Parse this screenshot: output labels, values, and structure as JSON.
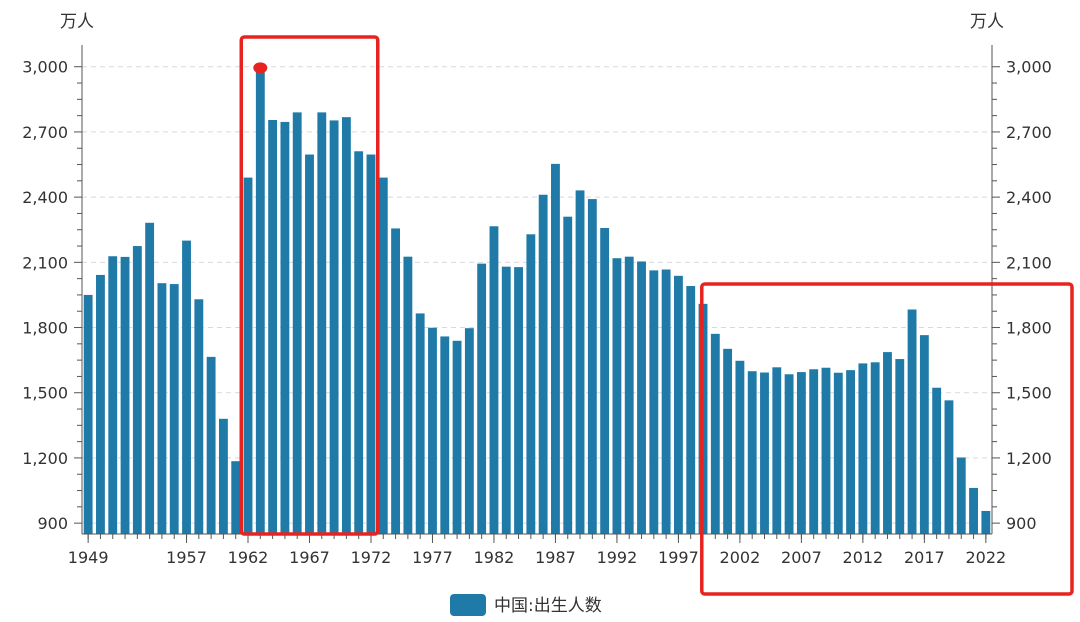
{
  "chart_data": {
    "type": "bar",
    "ylabel_left": "万人",
    "ylabel_right": "万人",
    "ylim": [
      850,
      3100
    ],
    "yticks": [
      900,
      1200,
      1500,
      1800,
      2100,
      2400,
      2700,
      3000
    ],
    "ytick_labels": [
      "900",
      "1,200",
      "1,500",
      "1,800",
      "2,100",
      "2,400",
      "2,700",
      "3,000"
    ],
    "xtick_labels": [
      "1949",
      "1957",
      "1962",
      "1967",
      "1972",
      "1977",
      "1982",
      "1987",
      "1992",
      "1997",
      "2002",
      "2007",
      "2012",
      "2017",
      "2022"
    ],
    "xtick_years": [
      1949,
      1957,
      1962,
      1967,
      1972,
      1977,
      1982,
      1987,
      1992,
      1997,
      2002,
      2007,
      2012,
      2017,
      2022
    ],
    "series": [
      {
        "name": "中国:出生人数",
        "color": "#1f7aa8",
        "categories": [
          1949,
          1950,
          1951,
          1952,
          1953,
          1954,
          1955,
          1956,
          1957,
          1958,
          1959,
          1960,
          1961,
          1962,
          1963,
          1964,
          1965,
          1966,
          1967,
          1968,
          1969,
          1970,
          1971,
          1972,
          1973,
          1974,
          1975,
          1976,
          1977,
          1978,
          1979,
          1980,
          1981,
          1982,
          1983,
          1984,
          1985,
          1986,
          1987,
          1988,
          1989,
          1990,
          1991,
          1992,
          1993,
          1994,
          1995,
          1996,
          1997,
          1998,
          1999,
          2000,
          2001,
          2002,
          2003,
          2004,
          2005,
          2006,
          2007,
          2008,
          2009,
          2010,
          2011,
          2012,
          2013,
          2014,
          2015,
          2016,
          2017,
          2018,
          2019,
          2020,
          2021,
          2022
        ],
        "values": [
          1950,
          2042,
          2128,
          2125,
          2175,
          2282,
          2004,
          2000,
          2200,
          1930,
          1665,
          1380,
          1185,
          2490,
          2995,
          2755,
          2746,
          2790,
          2596,
          2790,
          2753,
          2768,
          2611,
          2596,
          2490,
          2256,
          2126,
          1865,
          1799,
          1759,
          1739,
          1797,
          2094,
          2266,
          2080,
          2078,
          2229,
          2411,
          2553,
          2310,
          2431,
          2391,
          2258,
          2119,
          2126,
          2104,
          2063,
          2067,
          2038,
          1991,
          1909,
          1771,
          1702,
          1647,
          1599,
          1593,
          1617,
          1585,
          1595,
          1608,
          1615,
          1592,
          1604,
          1635,
          1640,
          1687,
          1655,
          1883,
          1765,
          1523,
          1465,
          1202,
          1062,
          956
        ]
      }
    ],
    "legend": {
      "label": "中国:出生人数",
      "position": "bottom-center"
    },
    "annotations": [
      {
        "type": "marker",
        "year": 1963,
        "color": "#e8231f"
      },
      {
        "type": "highlight-box",
        "from_year": 1962,
        "to_year": 1973,
        "color": "#e8231f"
      },
      {
        "type": "highlight-box",
        "from_year": 2000,
        "to_year": 2022,
        "color": "#e8231f"
      }
    ]
  }
}
